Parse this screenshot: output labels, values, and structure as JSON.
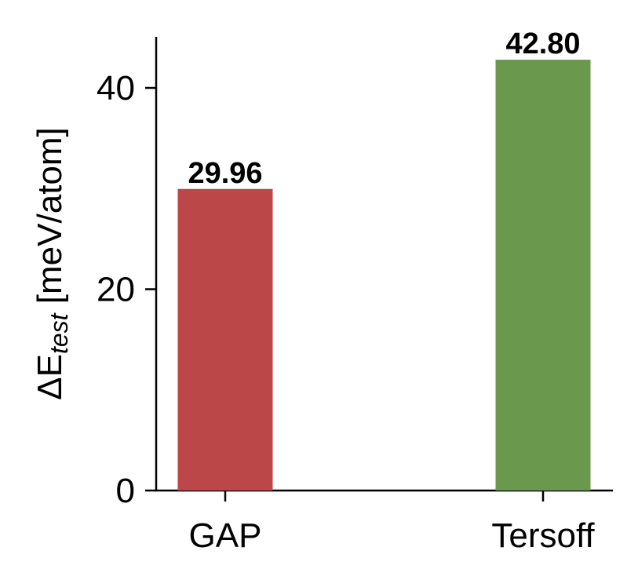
{
  "chart_data": {
    "type": "bar",
    "title": "",
    "xlabel": "",
    "ylabel": "ΔE_test [meV/atom]",
    "ylabel_main": "ΔE",
    "ylabel_sub": "test",
    "ylabel_unit": " [meV/atom]",
    "categories": [
      "GAP",
      "Tersoff"
    ],
    "values": [
      29.96,
      42.8
    ],
    "value_labels": [
      "29.96",
      "42.80"
    ],
    "colors": [
      "#BC4749",
      "#6A994E"
    ],
    "ylim": [
      0,
      45
    ],
    "yticks": [
      0,
      20,
      40
    ],
    "ytick_labels": [
      "0",
      "20",
      "40"
    ],
    "grid": false,
    "legend": null
  }
}
